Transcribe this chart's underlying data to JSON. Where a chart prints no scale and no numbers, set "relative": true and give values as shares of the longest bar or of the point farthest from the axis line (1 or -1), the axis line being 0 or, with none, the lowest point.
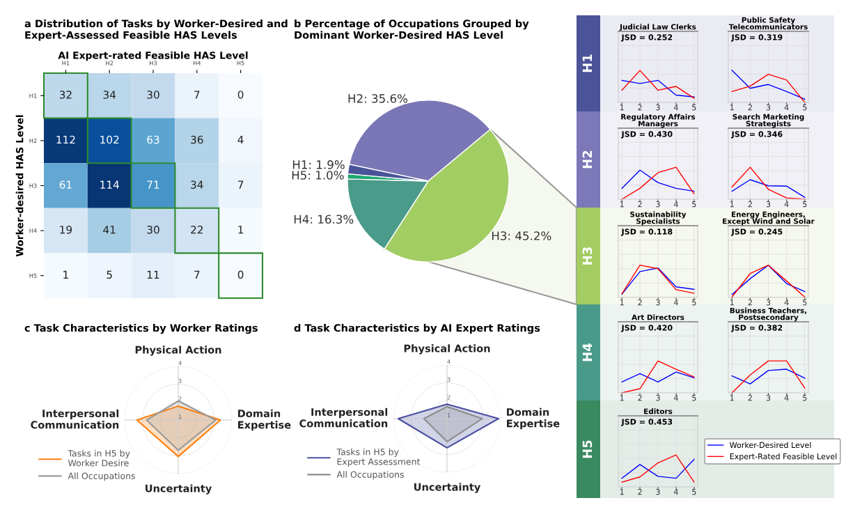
{
  "chart_data": [
    {
      "type": "heatmap",
      "title": "a Distribution of Tasks by Worker-Desired and\nExpert-Assessed Feasible HAS Levels",
      "xlabel": "AI Expert-rated Feasible HAS Level",
      "ylabel": "Worker-desired HAS Level",
      "categories": [
        "H1",
        "H2",
        "H3",
        "H4",
        "H5"
      ],
      "y_categories": [
        "H1",
        "H2",
        "H3",
        "H4",
        "H5"
      ],
      "cells": [
        [
          32,
          34,
          30,
          7,
          0
        ],
        [
          112,
          102,
          63,
          36,
          4
        ],
        [
          61,
          114,
          71,
          34,
          7
        ],
        [
          19,
          41,
          30,
          22,
          1
        ],
        [
          1,
          5,
          11,
          7,
          0
        ]
      ],
      "data_labels": true
    },
    {
      "type": "pie",
      "title": "b Percentage of Occupations Grouped by\nDominant Worker-Desired HAS Level",
      "categories": [
        null,
        null,
        null,
        null,
        null
      ],
      "values": [
        35.6,
        45.2,
        16.3,
        1.0,
        1.9
      ],
      "value_labels": [
        "H2: 35.6%",
        "H3: 45.2%",
        "H4: 16.3%",
        "H5: 1.0%",
        "H1: 1.9%"
      ],
      "colors": [
        "#7b77b6",
        "#a2cd63",
        "#4b9b8b",
        "#1fa870",
        "#4a5498"
      ]
    },
    {
      "type": "radar",
      "title": "c Task Characteristics by Worker Ratings",
      "categories": [
        "Physical Action",
        "Domain\nExpertise",
        "Uncertainty",
        "Interpersonal\nCommunication"
      ],
      "ylim": [
        1,
        4
      ],
      "yticks": [
        1,
        2,
        3,
        4
      ],
      "grid": true,
      "legend": "bottom left",
      "series": [
        {
          "name": "Tasks in H5 by\nWorker Desire",
          "color": "#ff7f0e",
          "values": [
            1.78,
            3.36,
            3.04,
            3.31
          ]
        },
        {
          "name": "All Occupations",
          "color": "#999999",
          "values": [
            2.06,
            3.1,
            2.69,
            2.77
          ]
        }
      ]
    },
    {
      "type": "radar",
      "title": "d Task Characteristics by AI Expert Ratings",
      "categories": [
        "Physical Action",
        "Domain\nExpertise",
        "Uncertainty",
        "Interpersonal\nCommunication"
      ],
      "ylim": [
        1,
        4
      ],
      "yticks": [
        1,
        2,
        3,
        4
      ],
      "grid": true,
      "legend": "bottom left",
      "series": [
        {
          "name": "Tasks in H5 by\nExpert Assessment",
          "color": "#4a4fa0",
          "values": [
            1.81,
            3.88,
            2.63,
            3.73
          ]
        },
        {
          "name": "All Occupations",
          "color": "#8c8c8c",
          "values": [
            1.67,
            2.97,
            2.29,
            2.29
          ]
        }
      ]
    },
    {
      "type": "line",
      "title": "Judicial Law Clerks",
      "x": [
        1,
        2,
        3,
        4,
        5
      ],
      "xlim": [
        0.8,
        5.2
      ],
      "xticks": [
        1,
        2,
        3,
        4,
        5
      ],
      "relative": true,
      "grid": true,
      "tick_labels": "x",
      "annotations": [
        "JSD = 0.252",
        "H1"
      ],
      "series": [
        {
          "color": "#0000ff",
          "values": [
            0.69,
            0.59,
            0.69,
            0.23,
            0.17
          ]
        },
        {
          "color": "#ff0000",
          "values": [
            0.38,
            1.0,
            0.38,
            0.5,
            0.13
          ]
        }
      ]
    },
    {
      "type": "line",
      "title": "Public Safety\nTelecommunicators",
      "x": [
        1,
        2,
        3,
        4,
        5
      ],
      "xlim": [
        0.8,
        5.2
      ],
      "xticks": [
        1,
        2,
        3,
        4,
        5
      ],
      "relative": true,
      "grid": true,
      "tick_labels": "x",
      "annotations": [
        "JSD = 0.319"
      ],
      "series": [
        {
          "color": "#0000ff",
          "values": [
            1.0,
            0.44,
            0.56,
            0.34,
            0.1
          ]
        },
        {
          "color": "#ff0000",
          "values": [
            0.34,
            0.51,
            0.88,
            0.7,
            0.0
          ]
        }
      ]
    },
    {
      "type": "line",
      "title": "Regulatory Affairs\nManagers",
      "x": [
        1,
        2,
        3,
        4,
        5
      ],
      "xlim": [
        0.8,
        5.2
      ],
      "xticks": [
        1,
        2,
        3,
        4,
        5
      ],
      "relative": true,
      "grid": true,
      "tick_labels": "x",
      "annotations": [
        "JSD = 0.430",
        "H2"
      ],
      "series": [
        {
          "color": "#0000ff",
          "values": [
            0.34,
            0.91,
            0.52,
            0.34,
            0.25
          ]
        },
        {
          "color": "#ff0000",
          "values": [
            0.0,
            0.34,
            0.83,
            1.0,
            0.17
          ]
        }
      ]
    },
    {
      "type": "line",
      "title": "Search Marketing\nStrategists",
      "x": [
        1,
        2,
        3,
        4,
        5
      ],
      "xlim": [
        0.8,
        5.2
      ],
      "xticks": [
        1,
        2,
        3,
        4,
        5
      ],
      "relative": true,
      "grid": true,
      "tick_labels": "x",
      "annotations": [
        "JSD = 0.346"
      ],
      "series": [
        {
          "color": "#0000ff",
          "values": [
            0.25,
            0.61,
            0.42,
            0.41,
            0.06
          ]
        },
        {
          "color": "#ff0000",
          "values": [
            0.38,
            1.0,
            0.31,
            0.04,
            0.0
          ]
        }
      ]
    },
    {
      "type": "line",
      "title": "Sustainability\nSpecialists",
      "x": [
        1,
        2,
        3,
        4,
        5
      ],
      "xlim": [
        0.8,
        5.2
      ],
      "xticks": [
        1,
        2,
        3,
        4,
        5
      ],
      "relative": true,
      "grid": true,
      "tick_labels": "x",
      "annotations": [
        "JSD = 0.118",
        "H3"
      ],
      "series": [
        {
          "color": "#0000ff",
          "values": [
            0.1,
            0.8,
            0.91,
            0.33,
            0.25
          ]
        },
        {
          "color": "#ff0000",
          "values": [
            0.11,
            1.0,
            0.89,
            0.24,
            0.13
          ]
        }
      ]
    },
    {
      "type": "line",
      "title": "Energy Engineers,\nExcept Wind and Solar",
      "x": [
        1,
        2,
        3,
        4,
        5
      ],
      "xlim": [
        0.8,
        5.2
      ],
      "xticks": [
        1,
        2,
        3,
        4,
        5
      ],
      "relative": true,
      "grid": true,
      "tick_labels": "x",
      "annotations": [
        "JSD = 0.245"
      ],
      "series": [
        {
          "color": "#0000ff",
          "values": [
            0.09,
            0.58,
            1.0,
            0.43,
            0.18
          ]
        },
        {
          "color": "#ff0000",
          "values": [
            0.01,
            0.74,
            1.0,
            0.51,
            0.01
          ]
        }
      ]
    },
    {
      "type": "line",
      "title": "Art Directors",
      "x": [
        1,
        2,
        3,
        4,
        5
      ],
      "xlim": [
        0.8,
        5.2
      ],
      "xticks": [
        1,
        2,
        3,
        4,
        5
      ],
      "relative": true,
      "grid": true,
      "tick_labels": "x",
      "annotations": [
        "JSD = 0.420",
        "H4"
      ],
      "series": [
        {
          "color": "#0000ff",
          "values": [
            0.34,
            0.6,
            0.34,
            0.65,
            0.47
          ]
        },
        {
          "color": "#ff0000",
          "values": [
            0.0,
            0.13,
            1.0,
            0.74,
            0.5
          ]
        }
      ]
    },
    {
      "type": "line",
      "title": "Business Teachers,\nPostsecondary",
      "x": [
        1,
        2,
        3,
        4,
        5
      ],
      "xlim": [
        0.8,
        5.2
      ],
      "xticks": [
        1,
        2,
        3,
        4,
        5
      ],
      "relative": true,
      "grid": true,
      "tick_labels": "x",
      "annotations": [
        "JSD = 0.382"
      ],
      "series": [
        {
          "color": "#0000ff",
          "values": [
            0.53,
            0.28,
            0.7,
            0.74,
            0.46
          ]
        },
        {
          "color": "#ff0000",
          "values": [
            0.0,
            0.56,
            1.0,
            1.0,
            0.15
          ]
        }
      ]
    },
    {
      "type": "line",
      "title": "Editors",
      "x": [
        1,
        2,
        3,
        4,
        5
      ],
      "xlim": [
        0.8,
        5.2
      ],
      "xticks": [
        1,
        2,
        3,
        4,
        5
      ],
      "relative": true,
      "grid": true,
      "tick_labels": "x",
      "legend": "right",
      "annotations": [
        "JSD = 0.453",
        "H5"
      ],
      "series": [
        {
          "name": "Worker-Desired Level",
          "color": "#0000ff",
          "values": [
            0.27,
            0.7,
            0.33,
            0.27,
            0.86
          ]
        },
        {
          "name": "Expert-Rated Feasible Level",
          "color": "#ff0000",
          "values": [
            0.15,
            0.31,
            0.75,
            1.0,
            0.15
          ]
        }
      ]
    }
  ]
}
